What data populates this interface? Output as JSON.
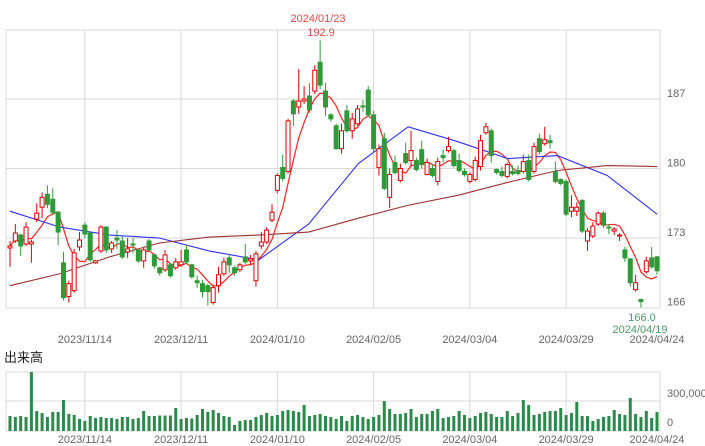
{
  "chart_data": {
    "type": "candlestick",
    "title": "",
    "price_axis": {
      "ticks": [
        "187",
        "180",
        "173",
        "166"
      ],
      "tick_values": [
        187,
        180,
        173,
        166
      ],
      "ylim": [
        166,
        194
      ]
    },
    "x_labels": [
      {
        "label": "2023/11/14",
        "index": 14
      },
      {
        "label": "2023/12/11",
        "index": 32
      },
      {
        "label": "2024/01/10",
        "index": 50
      },
      {
        "label": "2024/02/05",
        "index": 68
      },
      {
        "label": "2024/03/04",
        "index": 86
      },
      {
        "label": "2024/03/29",
        "index": 104
      },
      {
        "label": "2024/04/24",
        "index": 121
      }
    ],
    "high_annotation": {
      "date": "2024/01/23",
      "value": "192.9",
      "index": 58,
      "price": 192.9,
      "color": "#e04848"
    },
    "low_annotation": {
      "date": "2024/04/19",
      "value": "166.0",
      "index": 118,
      "price": 166.0,
      "color": "#4a9a6a"
    },
    "colors": {
      "up": "#e00000",
      "down": "#2e9a38",
      "ma_short": "#ff2020",
      "ma_mid": "#3030ff",
      "ma_long": "#a03030",
      "volume": "#2a8a4a",
      "grid": "#d9d9d9"
    },
    "candles_format": [
      "open",
      "high",
      "low",
      "close"
    ],
    "candles": [
      [
        172.0,
        172.7,
        170.1,
        172.2
      ],
      [
        172.7,
        174.4,
        172.5,
        173.5
      ],
      [
        173.3,
        173.4,
        171.2,
        172.2
      ],
      [
        172.4,
        174.6,
        172.2,
        174.1
      ],
      [
        172.4,
        172.8,
        170.5,
        172.6
      ],
      [
        174.9,
        176.5,
        174.6,
        175.5
      ],
      [
        176.1,
        177.6,
        175.0,
        177.1
      ],
      [
        177.4,
        178.3,
        176.0,
        176.4
      ],
      [
        176.9,
        178.0,
        175.3,
        175.6
      ],
      [
        175.6,
        175.7,
        172.3,
        173.6
      ],
      [
        170.5,
        171.6,
        166.7,
        167.0
      ],
      [
        167.1,
        168.7,
        166.5,
        168.4
      ],
      [
        167.7,
        171.9,
        167.5,
        171.5
      ],
      [
        172.1,
        173.6,
        171.7,
        172.8
      ],
      [
        174.3,
        174.6,
        173.0,
        173.4
      ],
      [
        173.5,
        173.6,
        170.6,
        170.8
      ],
      [
        170.5,
        170.8,
        170.4,
        170.7
      ],
      [
        171.7,
        174.3,
        171.5,
        174.1
      ],
      [
        174.1,
        174.2,
        171.5,
        171.8
      ],
      [
        171.9,
        172.7,
        171.5,
        172.5
      ],
      [
        173.0,
        173.8,
        171.9,
        172.8
      ],
      [
        172.7,
        173.2,
        170.9,
        171.1
      ],
      [
        171.6,
        173.0,
        171.0,
        171.9
      ],
      [
        172.4,
        173.0,
        171.5,
        172.3
      ],
      [
        171.8,
        171.9,
        170.5,
        170.7
      ],
      [
        170.7,
        172.0,
        170.0,
        171.8
      ],
      [
        172.7,
        172.9,
        171.6,
        171.8
      ],
      [
        171.3,
        171.4,
        169.9,
        170.2
      ],
      [
        170.0,
        170.1,
        169.2,
        169.5
      ],
      [
        169.8,
        171.8,
        169.6,
        171.3
      ],
      [
        170.3,
        170.5,
        169.0,
        169.2
      ],
      [
        170.0,
        171.0,
        169.8,
        170.6
      ],
      [
        170.3,
        171.8,
        170.1,
        170.6
      ],
      [
        171.8,
        172.3,
        170.4,
        170.6
      ],
      [
        170.3,
        170.4,
        168.9,
        169.1
      ],
      [
        168.7,
        169.2,
        168.0,
        168.5
      ],
      [
        168.4,
        168.8,
        167.0,
        167.6
      ],
      [
        168.2,
        168.4,
        166.2,
        167.6
      ],
      [
        166.5,
        168.3,
        166.3,
        168.0
      ],
      [
        168.2,
        170.1,
        167.5,
        169.3
      ],
      [
        169.4,
        171.0,
        169.2,
        170.6
      ],
      [
        171.0,
        171.4,
        169.5,
        170.3
      ],
      [
        170.0,
        170.2,
        169.2,
        169.5
      ],
      [
        169.8,
        170.5,
        169.6,
        170.3
      ],
      [
        171.1,
        172.4,
        170.4,
        170.6
      ],
      [
        170.7,
        171.3,
        170.3,
        170.9
      ],
      [
        168.7,
        171.7,
        168.1,
        171.4
      ],
      [
        172.2,
        173.6,
        171.9,
        172.6
      ],
      [
        172.6,
        174.1,
        172.4,
        173.8
      ],
      [
        174.8,
        176.4,
        174.6,
        175.6
      ],
      [
        177.8,
        179.5,
        177.5,
        179.3
      ],
      [
        180.1,
        181.4,
        178.7,
        179.0
      ],
      [
        179.7,
        185.0,
        179.5,
        184.8
      ],
      [
        186.8,
        187.0,
        184.3,
        185.5
      ],
      [
        186.2,
        190.0,
        185.5,
        186.8
      ],
      [
        186.8,
        188.3,
        186.5,
        187.0
      ],
      [
        187.3,
        188.6,
        185.6,
        185.9
      ],
      [
        187.8,
        190.4,
        187.5,
        189.9
      ],
      [
        190.7,
        192.9,
        188.0,
        188.4
      ],
      [
        187.8,
        188.6,
        185.3,
        186.2
      ],
      [
        185.4,
        185.6,
        184.7,
        185.0
      ],
      [
        184.3,
        184.5,
        181.9,
        182.0
      ],
      [
        182.0,
        184.5,
        181.5,
        183.8
      ],
      [
        185.8,
        186.4,
        183.6,
        183.8
      ],
      [
        183.8,
        185.6,
        183.0,
        185.0
      ],
      [
        184.5,
        186.4,
        184.3,
        186.0
      ],
      [
        186.3,
        186.9,
        185.7,
        186.2
      ],
      [
        187.9,
        188.3,
        185.2,
        185.4
      ],
      [
        185.4,
        185.8,
        181.6,
        182.0
      ],
      [
        180.1,
        182.4,
        179.3,
        182.0
      ],
      [
        183.0,
        183.6,
        177.8,
        178.0
      ],
      [
        177.1,
        180.0,
        176.0,
        179.4
      ],
      [
        180.6,
        181.3,
        179.4,
        179.6
      ],
      [
        178.8,
        180.5,
        178.6,
        180.0
      ],
      [
        181.5,
        182.6,
        180.4,
        180.6
      ],
      [
        180.8,
        183.8,
        180.2,
        181.8
      ],
      [
        180.8,
        181.1,
        179.7,
        179.9
      ],
      [
        181.9,
        182.8,
        180.0,
        180.4
      ],
      [
        179.4,
        181.0,
        179.3,
        180.6
      ],
      [
        180.0,
        180.4,
        179.1,
        179.3
      ],
      [
        178.7,
        181.1,
        178.3,
        180.7
      ],
      [
        181.3,
        181.9,
        180.6,
        181.1
      ],
      [
        181.8,
        183.2,
        181.6,
        182.2
      ],
      [
        181.8,
        182.0,
        180.1,
        180.3
      ],
      [
        180.8,
        181.5,
        179.6,
        179.8
      ],
      [
        179.7,
        180.0,
        179.2,
        179.4
      ],
      [
        178.7,
        179.6,
        178.5,
        179.4
      ],
      [
        178.9,
        181.2,
        178.7,
        180.8
      ],
      [
        180.2,
        183.4,
        179.8,
        182.8
      ],
      [
        183.6,
        184.6,
        183.4,
        184.2
      ],
      [
        183.8,
        184.0,
        180.6,
        181.3
      ],
      [
        179.9,
        180.0,
        179.4,
        179.6
      ],
      [
        179.7,
        180.2,
        179.1,
        179.3
      ],
      [
        179.2,
        180.6,
        179.0,
        180.4
      ],
      [
        179.7,
        180.3,
        179.3,
        179.5
      ],
      [
        179.8,
        180.3,
        179.3,
        179.5
      ],
      [
        179.7,
        181.4,
        179.5,
        180.7
      ],
      [
        180.8,
        181.4,
        178.7,
        178.9
      ],
      [
        179.7,
        182.6,
        179.5,
        182.2
      ],
      [
        183.0,
        183.5,
        181.4,
        181.7
      ],
      [
        182.5,
        184.2,
        182.3,
        182.9
      ],
      [
        182.8,
        183.4,
        182.0,
        182.6
      ],
      [
        179.7,
        180.7,
        178.5,
        178.7
      ],
      [
        178.9,
        179.0,
        178.3,
        178.5
      ],
      [
        178.7,
        178.9,
        175.2,
        175.4
      ],
      [
        175.7,
        177.3,
        175.1,
        176.1
      ],
      [
        175.7,
        176.6,
        175.2,
        176.1
      ],
      [
        176.8,
        176.9,
        173.5,
        173.7
      ],
      [
        172.7,
        174.0,
        171.7,
        173.7
      ],
      [
        173.2,
        174.6,
        173.0,
        174.2
      ],
      [
        174.4,
        175.7,
        174.2,
        175.5
      ],
      [
        175.5,
        175.7,
        174.0,
        174.3
      ],
      [
        174.1,
        174.4,
        173.4,
        174.0
      ],
      [
        173.7,
        174.1,
        173.3,
        173.9
      ],
      [
        173.2,
        173.5,
        172.7,
        173.3
      ],
      [
        171.8,
        172.1,
        170.6,
        171.0
      ],
      [
        170.9,
        171.0,
        168.1,
        168.5
      ],
      [
        167.8,
        169.3,
        167.6,
        168.5
      ],
      [
        166.8,
        166.9,
        166.0,
        166.6
      ],
      [
        169.6,
        171.1,
        169.4,
        170.7
      ],
      [
        171.0,
        172.1,
        169.9,
        170.1
      ],
      [
        171.1,
        171.2,
        169.3,
        169.7
      ]
    ],
    "ma_mid_samples": [
      175.7,
      174.1,
      173.3,
      173.0,
      171.7,
      170.8,
      174.4,
      180.5,
      184.2,
      182.7,
      181.0,
      181.3,
      179.3,
      175.4
    ],
    "ma_long_samples": [
      168.2,
      169.4,
      171.1,
      172.5,
      173.1,
      173.3,
      173.6,
      175.0,
      176.3,
      177.3,
      178.6,
      179.8,
      180.3,
      180.2
    ],
    "volume": {
      "title": "出来高",
      "ticks": [
        "300,000",
        "0"
      ],
      "tick_values": [
        300000,
        0
      ],
      "values": [
        150000,
        140000,
        150000,
        140000,
        590000,
        200000,
        180000,
        140000,
        190000,
        190000,
        310000,
        170000,
        160000,
        120000,
        100000,
        150000,
        130000,
        140000,
        130000,
        130000,
        120000,
        140000,
        140000,
        120000,
        130000,
        200000,
        150000,
        150000,
        155000,
        155000,
        155000,
        230000,
        120000,
        130000,
        125000,
        160000,
        220000,
        190000,
        210000,
        180000,
        150000,
        140000,
        60000,
        100000,
        110000,
        110000,
        140000,
        160000,
        180000,
        150000,
        160000,
        200000,
        210000,
        200000,
        190000,
        260000,
        150000,
        160000,
        170000,
        150000,
        140000,
        120000,
        150000,
        100000,
        150000,
        160000,
        140000,
        120000,
        140000,
        160000,
        300000,
        220000,
        170000,
        170000,
        180000,
        220000,
        140000,
        170000,
        170000,
        200000,
        220000,
        130000,
        140000,
        150000,
        200000,
        160000,
        130000,
        150000,
        180000,
        190000,
        170000,
        140000,
        140000,
        200000,
        150000,
        180000,
        310000,
        260000,
        160000,
        170000,
        190000,
        200000,
        200000,
        230000,
        160000,
        180000,
        290000,
        150000,
        150000,
        100000,
        120000,
        140000,
        150000,
        210000,
        170000,
        160000,
        330000,
        170000,
        140000,
        200000,
        130000,
        190000
      ]
    }
  }
}
